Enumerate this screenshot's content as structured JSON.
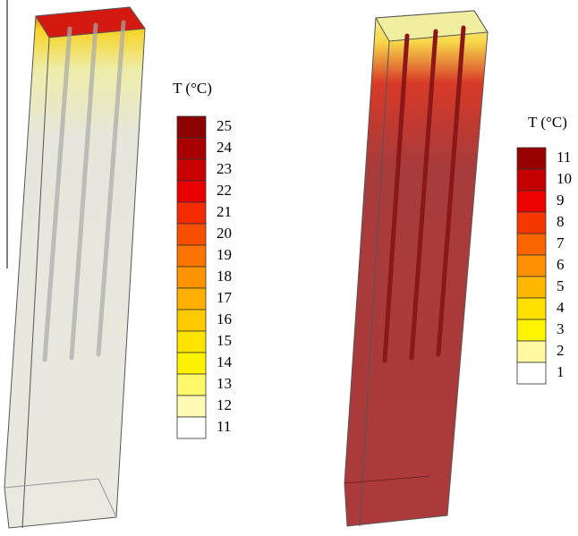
{
  "panels": [
    {
      "colorbar": {
        "title": "T (°C)",
        "ticks": [
          25,
          24,
          23,
          22,
          21,
          20,
          19,
          18,
          17,
          16,
          15,
          14,
          13,
          12,
          11
        ],
        "colors": [
          "#8b0000",
          "#a80000",
          "#c80000",
          "#e80000",
          "#f42a00",
          "#f84e00",
          "#fb7300",
          "#fd9400",
          "#ffb000",
          "#ffcb00",
          "#ffe400",
          "#fff200",
          "#fff86a",
          "#fffbb4",
          "#ffffff"
        ]
      }
    },
    {
      "colorbar": {
        "title": "T (°C)",
        "ticks": [
          11,
          10,
          9,
          8,
          7,
          6,
          5,
          4,
          3,
          2,
          1
        ],
        "colors": [
          "#990000",
          "#c40000",
          "#ee0000",
          "#f63800",
          "#fa6500",
          "#fd9000",
          "#ffb800",
          "#ffe000",
          "#fff500",
          "#fffaa0",
          "#ffffff"
        ]
      }
    }
  ]
}
